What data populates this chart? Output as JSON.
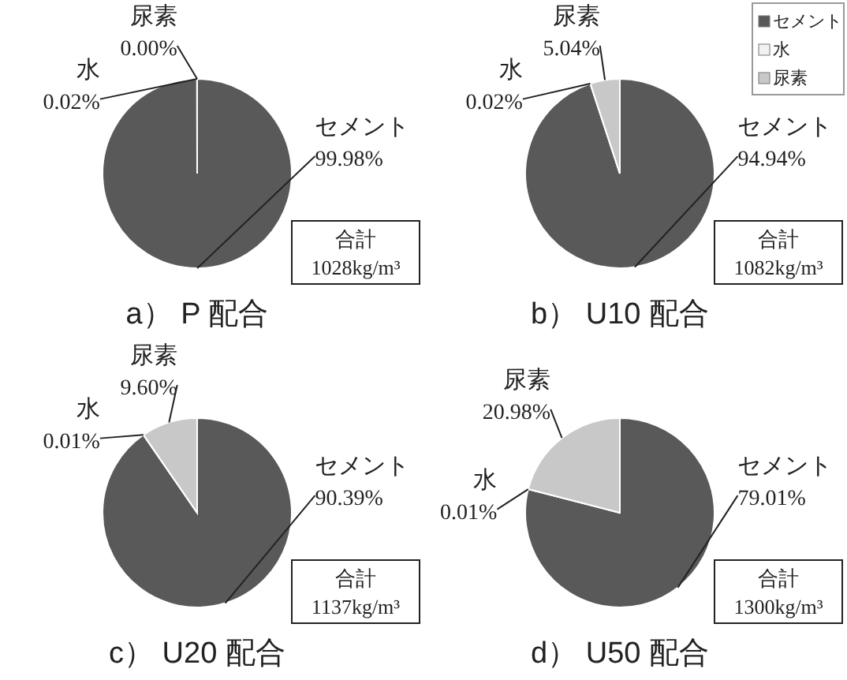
{
  "chart_data": [
    {
      "type": "pie",
      "title": "a） P 配合",
      "categories": [
        "セメント",
        "水",
        "尿素"
      ],
      "values": [
        99.98,
        0.02,
        0.0
      ],
      "value_labels": [
        "99.98%",
        "0.02%",
        "0.00%"
      ],
      "colors": [
        "#595959",
        "#f2f2f2",
        "#c8c8c8"
      ],
      "annotations": [
        "合計\n1028kg/m³"
      ],
      "legend": false
    },
    {
      "type": "pie",
      "title": "b） U10 配合",
      "categories": [
        "セメント",
        "水",
        "尿素"
      ],
      "values": [
        94.94,
        0.02,
        5.04
      ],
      "value_labels": [
        "94.94%",
        "0.02%",
        "5.04%"
      ],
      "colors": [
        "#595959",
        "#f2f2f2",
        "#c8c8c8"
      ],
      "annotations": [
        "合計\n1082kg/m³"
      ],
      "legend": "top right"
    },
    {
      "type": "pie",
      "title": "c） U20 配合",
      "categories": [
        "セメント",
        "水",
        "尿素"
      ],
      "values": [
        90.39,
        0.01,
        9.6
      ],
      "value_labels": [
        "90.39%",
        "0.01%",
        "9.60%"
      ],
      "colors": [
        "#595959",
        "#f2f2f2",
        "#c8c8c8"
      ],
      "annotations": [
        "合計\n1137kg/m³"
      ],
      "legend": false
    },
    {
      "type": "pie",
      "title": "d） U50 配合",
      "categories": [
        "セメント",
        "水",
        "尿素"
      ],
      "values": [
        79.01,
        0.01,
        20.98
      ],
      "value_labels": [
        "79.01%",
        "0.01%",
        "20.98%"
      ],
      "colors": [
        "#595959",
        "#f2f2f2",
        "#c8c8c8"
      ],
      "annotations": [
        "合計\n1300kg/m³"
      ],
      "legend": false
    }
  ]
}
